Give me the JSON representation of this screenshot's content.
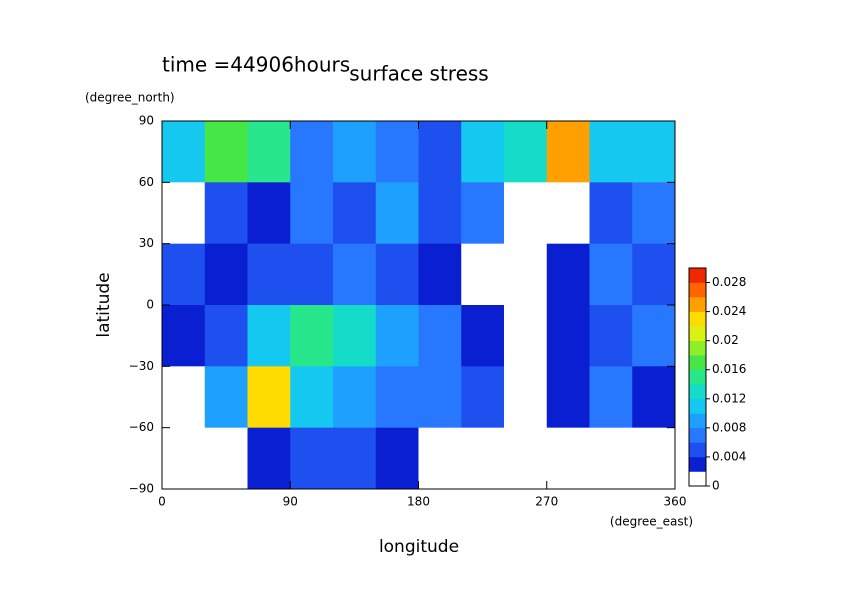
{
  "chart_data": {
    "type": "contour",
    "title": "surface stress",
    "subtitle": "time =44906hours",
    "x_label": "longitude",
    "x_unit": "(degree_east)",
    "y_label": "latitude",
    "y_unit": "(degree_north)",
    "xlim": [
      0,
      360
    ],
    "ylim": [
      -90,
      90
    ],
    "xticks": [
      0,
      90,
      180,
      270,
      360
    ],
    "yticks": [
      {
        "value": -90,
        "label": "−90"
      },
      {
        "value": -60,
        "label": "−60"
      },
      {
        "value": -30,
        "label": "−30"
      },
      0,
      30,
      60,
      90
    ],
    "x": [
      15,
      45,
      75,
      105,
      135,
      165,
      195,
      225,
      255,
      285,
      315,
      345
    ],
    "y": [
      75,
      45,
      15,
      -15,
      -45,
      -75
    ],
    "z": [
      [
        0.012,
        0.018,
        0.016,
        0.008,
        0.01,
        0.008,
        0.006,
        0.012,
        0.014,
        0.026,
        0.012,
        0.012
      ],
      [
        0.002,
        0.006,
        0.004,
        0.008,
        0.006,
        0.01,
        0.006,
        0.008,
        0.002,
        0.002,
        0.006,
        0.008
      ],
      [
        0.006,
        0.004,
        0.006,
        0.006,
        0.008,
        0.006,
        0.004,
        0.002,
        0.002,
        0.004,
        0.008,
        0.006
      ],
      [
        0.004,
        0.006,
        0.012,
        0.016,
        0.014,
        0.01,
        0.008,
        0.004,
        0.002,
        0.004,
        0.006,
        0.008
      ],
      [
        0.002,
        0.01,
        0.024,
        0.012,
        0.01,
        0.008,
        0.008,
        0.006,
        0.002,
        0.004,
        0.008,
        0.004
      ],
      [
        0,
        0.002,
        0.004,
        0.006,
        0.006,
        0.004,
        0.002,
        0,
        0,
        0,
        0,
        0
      ]
    ],
    "levels": [
      0,
      0.002,
      0.004,
      0.006,
      0.008,
      0.01,
      0.012,
      0.014,
      0.016,
      0.018,
      0.02,
      0.022,
      0.024,
      0.026,
      0.028,
      0.03
    ],
    "colors": [
      "#ffffff",
      "#0a1ed2",
      "#1e50f0",
      "#2878ff",
      "#1ea0ff",
      "#14c8f0",
      "#14dcc8",
      "#28e68c",
      "#46e646",
      "#8cf028",
      "#dcf014",
      "#ffdc00",
      "#ffa000",
      "#ff6400",
      "#f02800"
    ],
    "colorbar_ticks": [
      0,
      0.004,
      0.008,
      0.012,
      0.016,
      0.02,
      0.024,
      0.028
    ]
  }
}
